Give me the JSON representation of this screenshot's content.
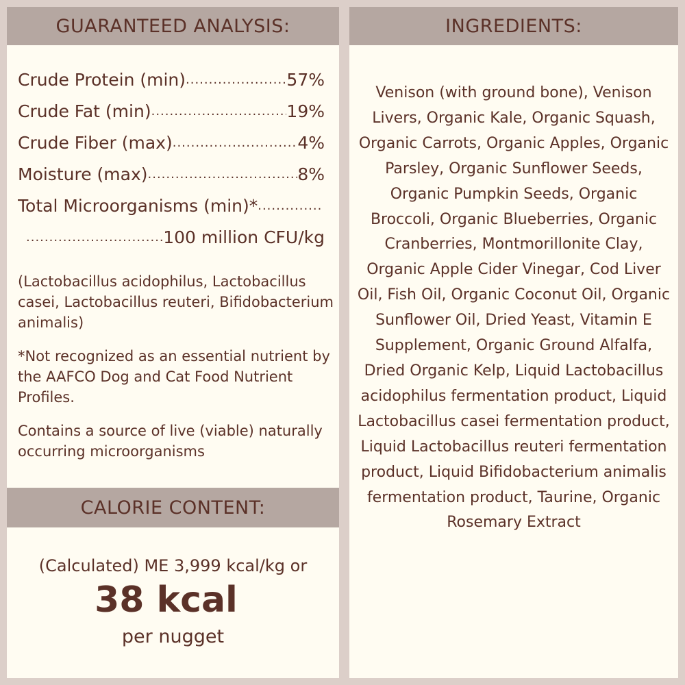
{
  "guaranteed_analysis": {
    "title": "GUARANTEED ANALYSIS:",
    "rows": [
      {
        "label": "Crude Protein (min)",
        "value": "57%"
      },
      {
        "label": "Crude Fat (min)",
        "value": "19%"
      },
      {
        "label": "Crude Fiber (max)",
        "value": "4%"
      },
      {
        "label": "Moisture (max)",
        "value": "8%"
      },
      {
        "label": "Total Microorganisms (min)*",
        "value": "100 million CFU/kg"
      }
    ],
    "strains": "(Lactobacillus acidophilus, Lactobacillus casei, Lactobacillus reuteri, Bifidobacterium animalis)",
    "footnote": "*Not recognized as an essential nutrient by the AAFCO Dog and Cat Food Nutrient Profiles.",
    "live_note": "Contains a source of live (viable) naturally occurring microorganisms"
  },
  "calorie": {
    "title": "CALORIE CONTENT:",
    "calculated": "(Calculated) ME 3,999 kcal/kg or",
    "big": "38 kcal",
    "per": "per nugget"
  },
  "ingredients": {
    "title": "INGREDIENTS:",
    "text": "Venison (with ground bone), Venison Livers, Organic Kale, Organic Squash, Organic Carrots, Organic Apples, Organic Parsley, Organic Sunflower Seeds, Organic Pumpkin Seeds, Organic Broccoli, Organic Blueberries, Organic Cranberries, Montmorillonite Clay, Organic Apple Cider Vinegar, Cod Liver Oil, Fish Oil, Organic Coconut Oil, Organic Sunflower Oil, Dried Yeast, Vitamin E Supplement, Organic Ground Alfalfa, Dried Organic Kelp, Liquid Lactobacillus acidophilus fermentation product, Liquid Lactobacillus casei fermentation product, Liquid Lactobacillus reuteri fermentation product, Liquid Bifidobacterium animalis fermentation product, Taurine, Organic Rosemary Extract"
  },
  "colors": {
    "background": "#dccfc9",
    "header": "#b5a7a1",
    "panel": "#fffcf2",
    "text": "#5b3128"
  }
}
